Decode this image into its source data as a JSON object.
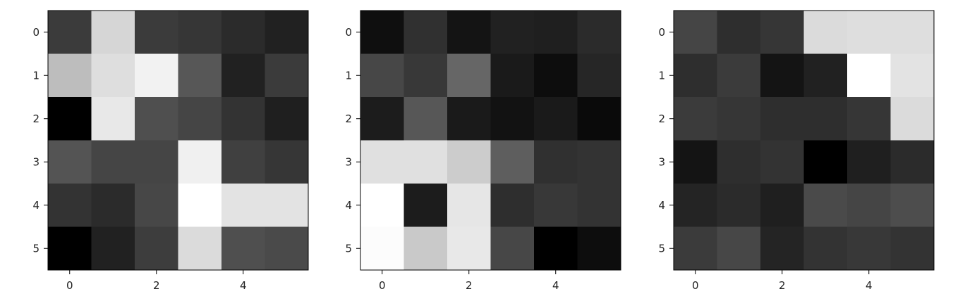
{
  "chart_data": [
    {
      "type": "heatmap",
      "colormap": "gray",
      "vmin": 0,
      "vmax": 1,
      "xlim": [
        -0.5,
        5.5
      ],
      "ylim": [
        5.5,
        -0.5
      ],
      "x_ticks": [
        0,
        2,
        4
      ],
      "y_ticks": [
        0,
        1,
        2,
        3,
        4,
        5
      ],
      "x_tick_labels": [
        "0",
        "2",
        "4"
      ],
      "y_tick_labels": [
        "0",
        "1",
        "2",
        "3",
        "4",
        "5"
      ],
      "values": [
        [
          0.23,
          0.84,
          0.23,
          0.21,
          0.17,
          0.13
        ],
        [
          0.74,
          0.87,
          0.95,
          0.34,
          0.13,
          0.23
        ],
        [
          0.0,
          0.91,
          0.31,
          0.27,
          0.2,
          0.12
        ],
        [
          0.33,
          0.27,
          0.27,
          0.94,
          0.25,
          0.21
        ],
        [
          0.2,
          0.17,
          0.28,
          1.0,
          0.89,
          0.89
        ],
        [
          0.0,
          0.13,
          0.24,
          0.86,
          0.31,
          0.29
        ]
      ]
    },
    {
      "type": "heatmap",
      "colormap": "gray",
      "vmin": 0,
      "vmax": 1,
      "xlim": [
        -0.5,
        5.5
      ],
      "ylim": [
        5.5,
        -0.5
      ],
      "x_ticks": [
        0,
        2,
        4
      ],
      "y_ticks": [
        0,
        1,
        2,
        3,
        4,
        5
      ],
      "x_tick_labels": [
        "0",
        "2",
        "4"
      ],
      "y_tick_labels": [
        "0",
        "1",
        "2",
        "3",
        "4",
        "5"
      ],
      "values": [
        [
          0.06,
          0.19,
          0.08,
          0.13,
          0.12,
          0.17
        ],
        [
          0.28,
          0.22,
          0.4,
          0.1,
          0.05,
          0.15
        ],
        [
          0.11,
          0.34,
          0.1,
          0.07,
          0.1,
          0.04
        ],
        [
          0.88,
          0.88,
          0.8,
          0.37,
          0.19,
          0.2
        ],
        [
          1.0,
          0.11,
          0.9,
          0.18,
          0.22,
          0.2
        ],
        [
          0.99,
          0.79,
          0.91,
          0.28,
          0.0,
          0.05
        ]
      ]
    },
    {
      "type": "heatmap",
      "colormap": "gray",
      "vmin": 0,
      "vmax": 1,
      "xlim": [
        -0.5,
        5.5
      ],
      "ylim": [
        5.5,
        -0.5
      ],
      "x_ticks": [
        0,
        2,
        4
      ],
      "y_ticks": [
        0,
        1,
        2,
        3,
        4,
        5
      ],
      "x_tick_labels": [
        "0",
        "2",
        "4"
      ],
      "y_tick_labels": [
        "0",
        "1",
        "2",
        "3",
        "4",
        "5"
      ],
      "values": [
        [
          0.27,
          0.18,
          0.21,
          0.86,
          0.87,
          0.87
        ],
        [
          0.18,
          0.23,
          0.08,
          0.13,
          1.0,
          0.89
        ],
        [
          0.23,
          0.21,
          0.18,
          0.18,
          0.21,
          0.86
        ],
        [
          0.08,
          0.18,
          0.2,
          0.0,
          0.12,
          0.17
        ],
        [
          0.14,
          0.17,
          0.12,
          0.29,
          0.27,
          0.3
        ],
        [
          0.23,
          0.28,
          0.14,
          0.2,
          0.22,
          0.2
        ]
      ]
    }
  ]
}
